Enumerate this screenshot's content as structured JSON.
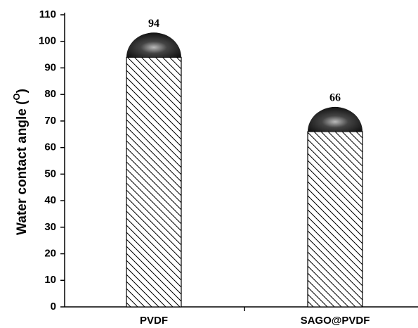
{
  "chart_data": {
    "type": "bar",
    "ylabel": {
      "text": "Water contact angle (",
      "superscript": "O",
      "close": ")"
    },
    "categories": [
      "PVDF",
      "SAGO@PVDF"
    ],
    "values": [
      94,
      66
    ],
    "color": "#ffffff",
    "ylim": [
      0,
      110
    ],
    "yticks": [
      0,
      10,
      20,
      30,
      40,
      50,
      60,
      70,
      80,
      90,
      100,
      110
    ],
    "grid": false
  }
}
